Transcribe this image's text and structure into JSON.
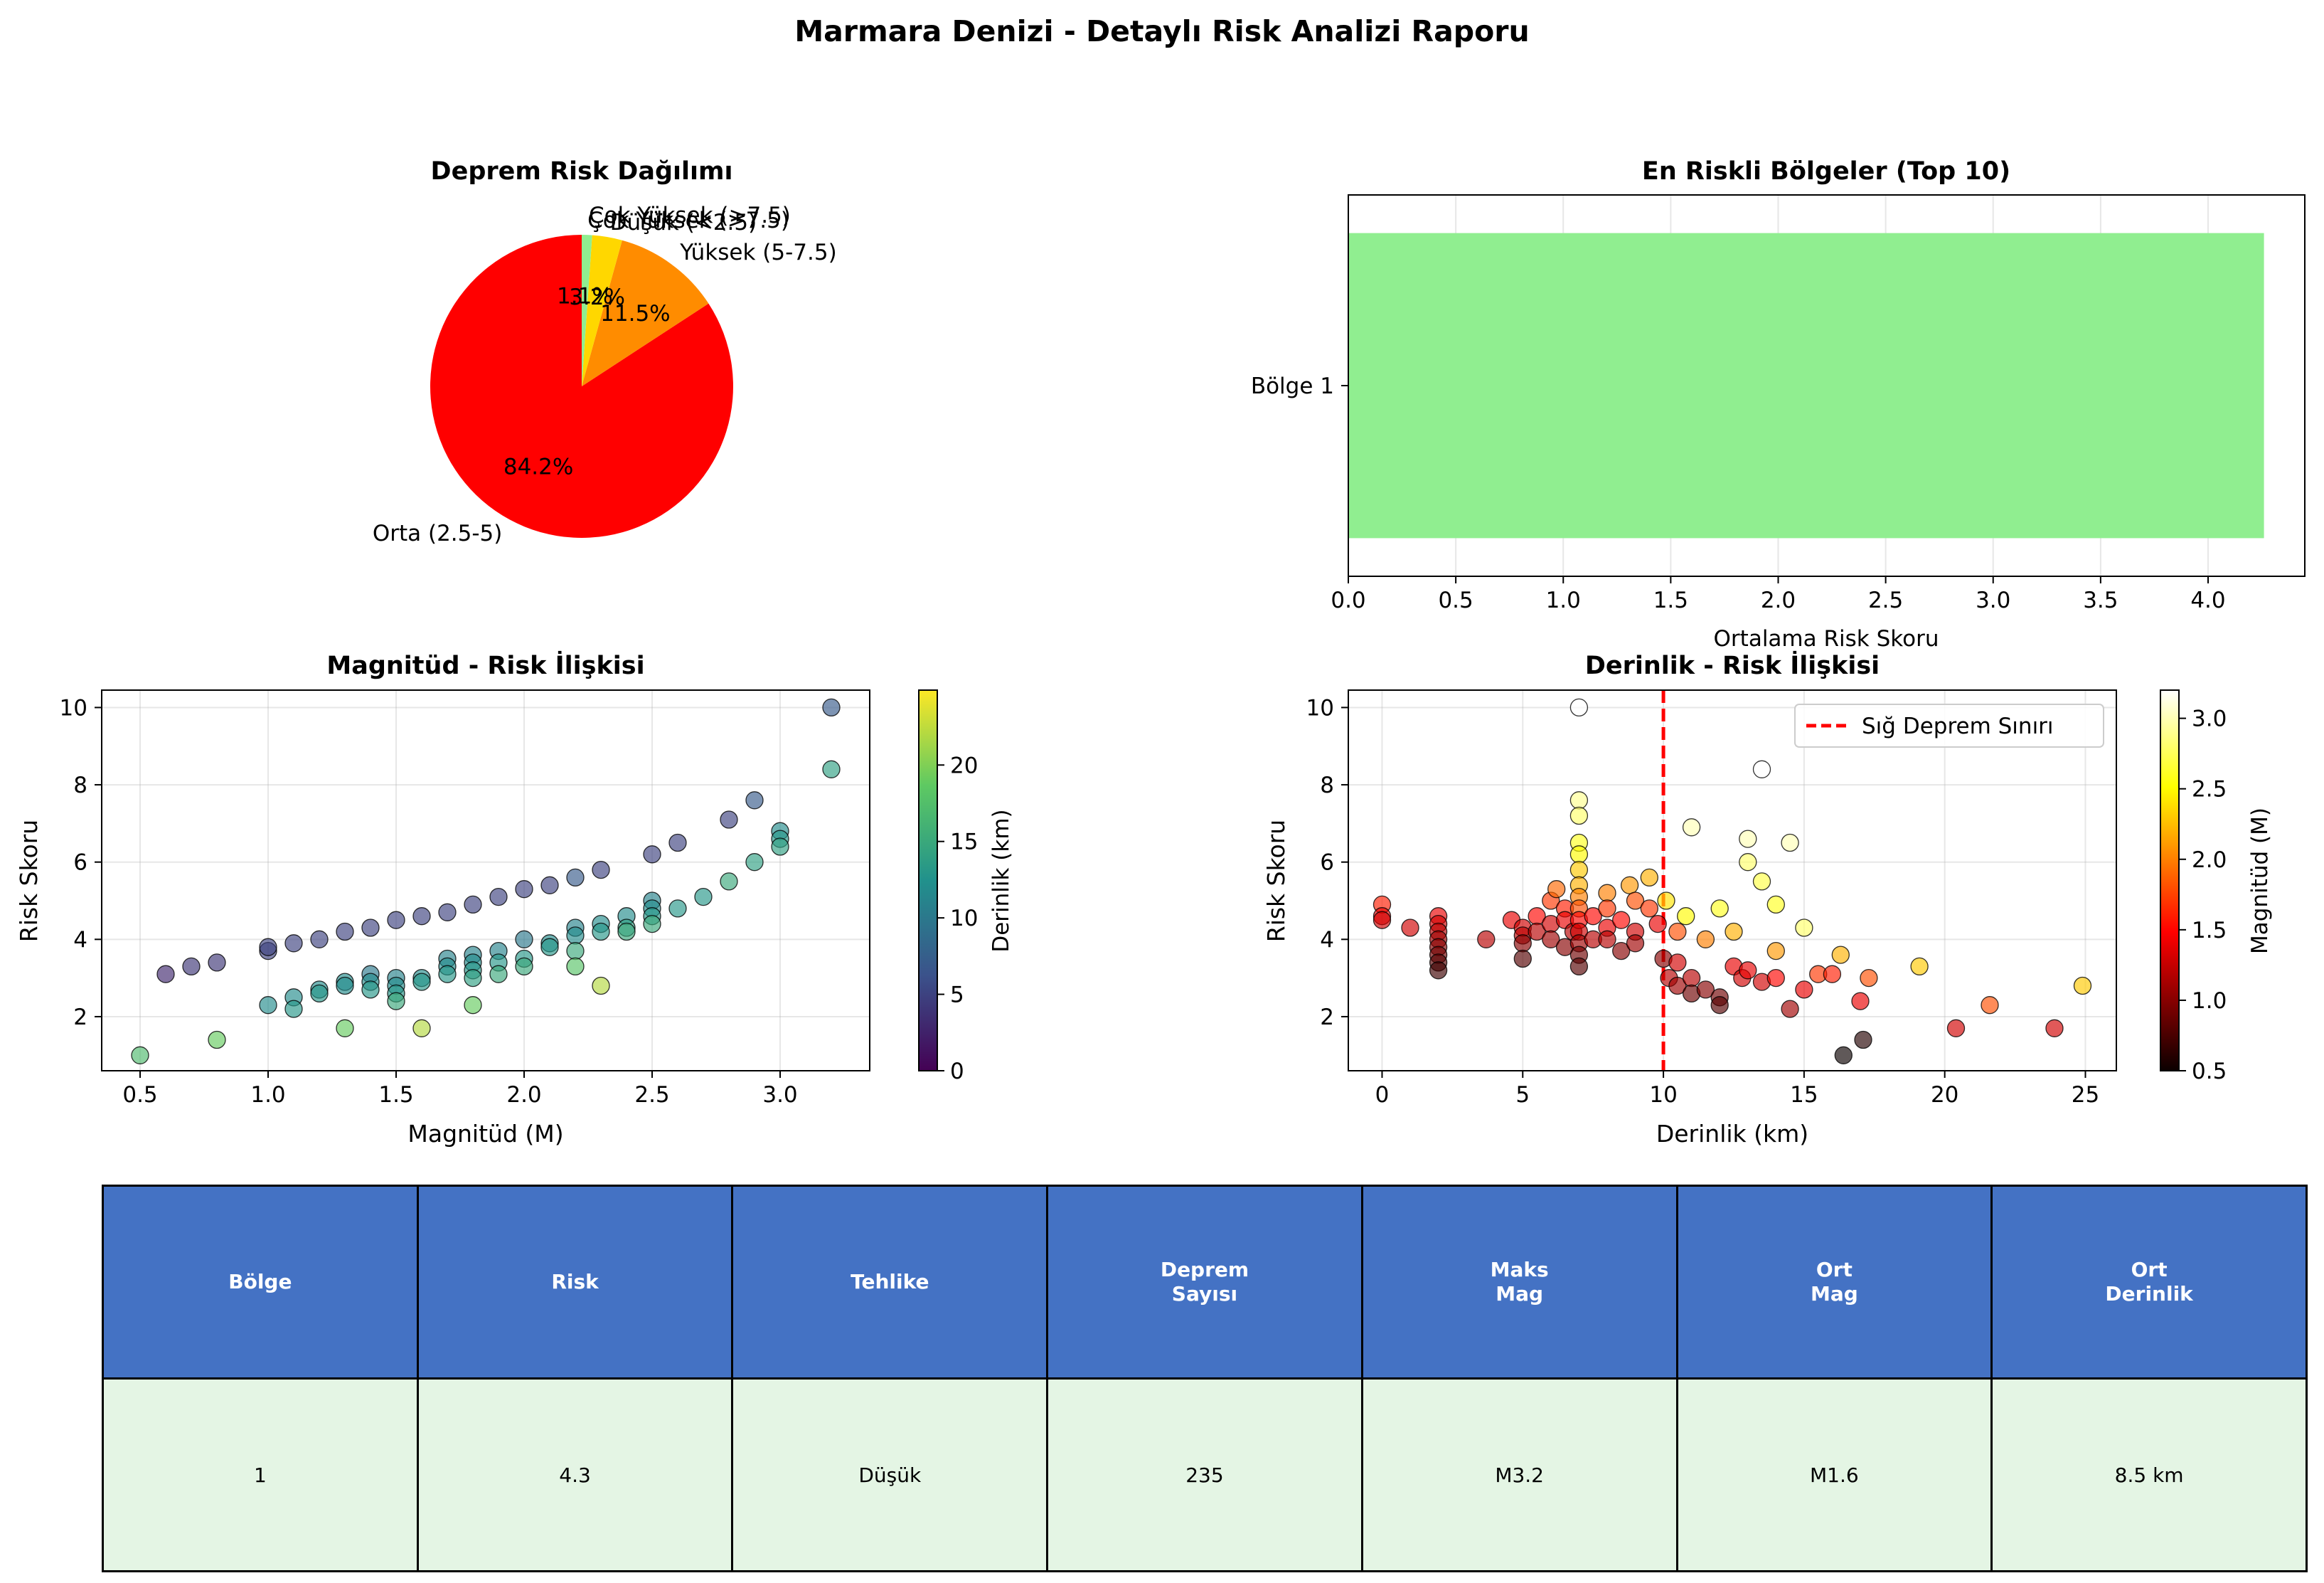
{
  "suptitle": "Marmara Denizi - Detaylı Risk Analizi Raporu",
  "chart_data": [
    {
      "type": "pie",
      "title": "Deprem Risk Dağılımı",
      "slices": [
        {
          "label": "Orta (2.5-5)",
          "value": 84.2,
          "pct_label": "84.2%",
          "color": "#ff0000"
        },
        {
          "label": "Yüksek (5-7.5)",
          "value": 11.5,
          "pct_label": "11.5%",
          "color": "#ff8c00"
        },
        {
          "label": "Düşük (<2.5)",
          "value": 3.2,
          "pct_label": "3.2%",
          "color": "#ffd700"
        },
        {
          "label": "Çok Yüksek (>7.5)",
          "value": 1.1,
          "pct_label": "1.1%",
          "color": "#90ee90"
        }
      ],
      "overlapping_text": "Çok Yüksek (>7.5)"
    },
    {
      "type": "bar",
      "orientation": "horizontal",
      "title": "En Riskli Bölgeler (Top 10)",
      "categories": [
        "Bölge 1"
      ],
      "values": [
        4.26
      ],
      "xlabel": "Ortalama Risk Skoru",
      "xlim": [
        0,
        4.45
      ],
      "xticks": [
        "0.0",
        "0.5",
        "1.0",
        "1.5",
        "2.0",
        "2.5",
        "3.0",
        "3.5",
        "4.0"
      ],
      "bar_color": "#90ee90",
      "grid": "x"
    },
    {
      "type": "scatter",
      "title": "Magnitüd - Risk İlişkisi",
      "xlabel": "Magnitüd (M)",
      "ylabel": "Risk Skoru",
      "xlim": [
        0.35,
        3.35
      ],
      "ylim": [
        0.6,
        10.45
      ],
      "xticks": [
        "0.5",
        "1.0",
        "1.5",
        "2.0",
        "2.5",
        "3.0"
      ],
      "yticks": [
        "2",
        "4",
        "6",
        "8",
        "10"
      ],
      "colorbar": {
        "label": "Derinlik (km)",
        "colormap": "viridis",
        "range": [
          0,
          24.9
        ],
        "ticks": [
          "0",
          "5",
          "10",
          "15",
          "20"
        ]
      },
      "points": [
        {
          "x": 0.5,
          "y": 1.0,
          "c": 17
        },
        {
          "x": 0.6,
          "y": 3.1,
          "c": 3
        },
        {
          "x": 0.7,
          "y": 3.3,
          "c": 4
        },
        {
          "x": 0.8,
          "y": 3.4,
          "c": 4
        },
        {
          "x": 0.8,
          "y": 1.4,
          "c": 19
        },
        {
          "x": 1.0,
          "y": 3.7,
          "c": 5
        },
        {
          "x": 1.0,
          "y": 3.8,
          "c": 5
        },
        {
          "x": 1.0,
          "y": 2.3,
          "c": 12
        },
        {
          "x": 1.1,
          "y": 3.9,
          "c": 5
        },
        {
          "x": 1.1,
          "y": 2.5,
          "c": 12
        },
        {
          "x": 1.1,
          "y": 2.2,
          "c": 13
        },
        {
          "x": 1.2,
          "y": 4.0,
          "c": 5
        },
        {
          "x": 1.2,
          "y": 2.7,
          "c": 12
        },
        {
          "x": 1.2,
          "y": 2.6,
          "c": 13
        },
        {
          "x": 1.3,
          "y": 4.2,
          "c": 5
        },
        {
          "x": 1.3,
          "y": 2.9,
          "c": 12
        },
        {
          "x": 1.3,
          "y": 2.8,
          "c": 12
        },
        {
          "x": 1.3,
          "y": 1.7,
          "c": 19
        },
        {
          "x": 1.4,
          "y": 4.3,
          "c": 5
        },
        {
          "x": 1.4,
          "y": 3.1,
          "c": 10
        },
        {
          "x": 1.4,
          "y": 2.9,
          "c": 12
        },
        {
          "x": 1.4,
          "y": 2.7,
          "c": 13
        },
        {
          "x": 1.5,
          "y": 4.5,
          "c": 5
        },
        {
          "x": 1.5,
          "y": 3.0,
          "c": 11
        },
        {
          "x": 1.5,
          "y": 2.8,
          "c": 12
        },
        {
          "x": 1.5,
          "y": 2.6,
          "c": 13
        },
        {
          "x": 1.5,
          "y": 2.4,
          "c": 15
        },
        {
          "x": 1.6,
          "y": 4.6,
          "c": 5
        },
        {
          "x": 1.6,
          "y": 3.0,
          "c": 12
        },
        {
          "x": 1.6,
          "y": 2.9,
          "c": 13
        },
        {
          "x": 1.6,
          "y": 1.7,
          "c": 22
        },
        {
          "x": 1.7,
          "y": 4.7,
          "c": 5
        },
        {
          "x": 1.7,
          "y": 3.5,
          "c": 11
        },
        {
          "x": 1.7,
          "y": 3.3,
          "c": 12
        },
        {
          "x": 1.7,
          "y": 3.1,
          "c": 13
        },
        {
          "x": 1.8,
          "y": 4.9,
          "c": 5
        },
        {
          "x": 1.8,
          "y": 3.6,
          "c": 11
        },
        {
          "x": 1.8,
          "y": 3.4,
          "c": 12
        },
        {
          "x": 1.8,
          "y": 3.2,
          "c": 13
        },
        {
          "x": 1.8,
          "y": 3.0,
          "c": 14
        },
        {
          "x": 1.8,
          "y": 2.3,
          "c": 19
        },
        {
          "x": 1.9,
          "y": 5.1,
          "c": 5
        },
        {
          "x": 1.9,
          "y": 3.7,
          "c": 11
        },
        {
          "x": 1.9,
          "y": 3.4,
          "c": 13
        },
        {
          "x": 1.9,
          "y": 3.1,
          "c": 15
        },
        {
          "x": 2.0,
          "y": 5.3,
          "c": 5
        },
        {
          "x": 2.0,
          "y": 4.0,
          "c": 10
        },
        {
          "x": 2.0,
          "y": 3.5,
          "c": 13
        },
        {
          "x": 2.0,
          "y": 3.3,
          "c": 15
        },
        {
          "x": 2.1,
          "y": 5.4,
          "c": 5
        },
        {
          "x": 2.1,
          "y": 3.9,
          "c": 12
        },
        {
          "x": 2.1,
          "y": 3.8,
          "c": 13
        },
        {
          "x": 2.2,
          "y": 5.6,
          "c": 7
        },
        {
          "x": 2.2,
          "y": 4.3,
          "c": 11
        },
        {
          "x": 2.2,
          "y": 4.1,
          "c": 12
        },
        {
          "x": 2.2,
          "y": 3.7,
          "c": 15
        },
        {
          "x": 2.2,
          "y": 3.3,
          "c": 18
        },
        {
          "x": 2.3,
          "y": 5.8,
          "c": 5
        },
        {
          "x": 2.3,
          "y": 4.4,
          "c": 12
        },
        {
          "x": 2.3,
          "y": 4.2,
          "c": 13
        },
        {
          "x": 2.3,
          "y": 2.8,
          "c": 22
        },
        {
          "x": 2.4,
          "y": 4.6,
          "c": 12
        },
        {
          "x": 2.4,
          "y": 4.3,
          "c": 14
        },
        {
          "x": 2.4,
          "y": 4.2,
          "c": 15
        },
        {
          "x": 2.5,
          "y": 6.2,
          "c": 5
        },
        {
          "x": 2.5,
          "y": 5.0,
          "c": 11
        },
        {
          "x": 2.5,
          "y": 4.8,
          "c": 12
        },
        {
          "x": 2.5,
          "y": 4.6,
          "c": 13
        },
        {
          "x": 2.5,
          "y": 4.4,
          "c": 15
        },
        {
          "x": 2.6,
          "y": 6.5,
          "c": 5
        },
        {
          "x": 2.6,
          "y": 4.8,
          "c": 13
        },
        {
          "x": 2.7,
          "y": 5.1,
          "c": 13
        },
        {
          "x": 2.8,
          "y": 7.1,
          "c": 5
        },
        {
          "x": 2.8,
          "y": 5.5,
          "c": 15
        },
        {
          "x": 2.9,
          "y": 7.6,
          "c": 7
        },
        {
          "x": 2.9,
          "y": 6.0,
          "c": 14
        },
        {
          "x": 3.0,
          "y": 6.8,
          "c": 12
        },
        {
          "x": 3.0,
          "y": 6.6,
          "c": 13
        },
        {
          "x": 3.0,
          "y": 6.4,
          "c": 14
        },
        {
          "x": 3.2,
          "y": 10.0,
          "c": 7
        },
        {
          "x": 3.2,
          "y": 8.4,
          "c": 14
        }
      ]
    },
    {
      "type": "scatter",
      "title": "Derinlik - Risk İlişkisi",
      "xlabel": "Derinlik (km)",
      "ylabel": "Risk Skoru",
      "xlim": [
        -1.2,
        26.1
      ],
      "ylim": [
        0.6,
        10.45
      ],
      "xticks": [
        "0",
        "5",
        "10",
        "15",
        "20",
        "25"
      ],
      "yticks": [
        "2",
        "4",
        "6",
        "8",
        "10"
      ],
      "reference_line": {
        "x": 10,
        "label": "Sığ Deprem Sınırı",
        "color": "#ff0000",
        "style": "dashed"
      },
      "legend": "top-right",
      "colorbar": {
        "label": "Magnitüd (M)",
        "colormap": "hot",
        "range": [
          0.5,
          3.2
        ],
        "ticks": [
          "0.5",
          "1.0",
          "1.5",
          "2.0",
          "2.5",
          "3.0"
        ]
      },
      "points": [
        {
          "x": 0,
          "y": 4.9,
          "c": 1.6
        },
        {
          "x": 0,
          "y": 4.6,
          "c": 1.4
        },
        {
          "x": 0,
          "y": 4.5,
          "c": 1.3
        },
        {
          "x": 1,
          "y": 4.3,
          "c": 1.3
        },
        {
          "x": 2,
          "y": 4.6,
          "c": 1.4
        },
        {
          "x": 2,
          "y": 4.4,
          "c": 1.3
        },
        {
          "x": 2,
          "y": 4.2,
          "c": 1.2
        },
        {
          "x": 2,
          "y": 4.0,
          "c": 1.1
        },
        {
          "x": 2,
          "y": 3.8,
          "c": 1.0
        },
        {
          "x": 2,
          "y": 3.6,
          "c": 0.9
        },
        {
          "x": 2,
          "y": 3.4,
          "c": 0.8
        },
        {
          "x": 2,
          "y": 3.2,
          "c": 0.7
        },
        {
          "x": 3.7,
          "y": 4.0,
          "c": 1.2
        },
        {
          "x": 4.6,
          "y": 4.5,
          "c": 1.4
        },
        {
          "x": 5,
          "y": 4.3,
          "c": 1.3
        },
        {
          "x": 5,
          "y": 4.1,
          "c": 1.2
        },
        {
          "x": 5,
          "y": 3.9,
          "c": 1.0
        },
        {
          "x": 5,
          "y": 3.5,
          "c": 0.8
        },
        {
          "x": 5.5,
          "y": 4.6,
          "c": 1.5
        },
        {
          "x": 5.5,
          "y": 4.2,
          "c": 1.2
        },
        {
          "x": 6,
          "y": 5.0,
          "c": 1.7
        },
        {
          "x": 6,
          "y": 4.4,
          "c": 1.3
        },
        {
          "x": 6,
          "y": 4.0,
          "c": 1.1
        },
        {
          "x": 6.2,
          "y": 5.3,
          "c": 1.9
        },
        {
          "x": 6.5,
          "y": 4.8,
          "c": 1.6
        },
        {
          "x": 6.5,
          "y": 4.5,
          "c": 1.4
        },
        {
          "x": 6.5,
          "y": 3.8,
          "c": 1.0
        },
        {
          "x": 6.8,
          "y": 4.2,
          "c": 1.2
        },
        {
          "x": 7,
          "y": 10.0,
          "c": 3.2
        },
        {
          "x": 7,
          "y": 7.6,
          "c": 2.9
        },
        {
          "x": 7,
          "y": 7.2,
          "c": 2.8
        },
        {
          "x": 7,
          "y": 6.5,
          "c": 2.6
        },
        {
          "x": 7,
          "y": 6.2,
          "c": 2.5
        },
        {
          "x": 7,
          "y": 5.8,
          "c": 2.3
        },
        {
          "x": 7,
          "y": 5.4,
          "c": 2.2
        },
        {
          "x": 7,
          "y": 5.1,
          "c": 2.0
        },
        {
          "x": 7,
          "y": 4.8,
          "c": 1.8
        },
        {
          "x": 7,
          "y": 4.5,
          "c": 1.5
        },
        {
          "x": 7,
          "y": 4.2,
          "c": 1.3
        },
        {
          "x": 7,
          "y": 3.9,
          "c": 1.1
        },
        {
          "x": 7,
          "y": 3.6,
          "c": 0.9
        },
        {
          "x": 7,
          "y": 3.3,
          "c": 0.8
        },
        {
          "x": 7.5,
          "y": 4.6,
          "c": 1.5
        },
        {
          "x": 7.5,
          "y": 4.0,
          "c": 1.2
        },
        {
          "x": 8,
          "y": 5.2,
          "c": 2.0
        },
        {
          "x": 8,
          "y": 4.8,
          "c": 1.7
        },
        {
          "x": 8,
          "y": 4.3,
          "c": 1.4
        },
        {
          "x": 8,
          "y": 4.0,
          "c": 1.2
        },
        {
          "x": 8.5,
          "y": 4.5,
          "c": 1.5
        },
        {
          "x": 8.5,
          "y": 3.7,
          "c": 1.0
        },
        {
          "x": 8.8,
          "y": 5.4,
          "c": 2.1
        },
        {
          "x": 9,
          "y": 5.0,
          "c": 1.8
        },
        {
          "x": 9,
          "y": 4.2,
          "c": 1.3
        },
        {
          "x": 9,
          "y": 3.9,
          "c": 1.1
        },
        {
          "x": 9.5,
          "y": 5.6,
          "c": 2.2
        },
        {
          "x": 9.5,
          "y": 4.8,
          "c": 1.7
        },
        {
          "x": 9.8,
          "y": 4.4,
          "c": 1.4
        },
        {
          "x": 10,
          "y": 3.5,
          "c": 1.0
        },
        {
          "x": 10.1,
          "y": 5.0,
          "c": 2.4
        },
        {
          "x": 10.2,
          "y": 3.0,
          "c": 1.2
        },
        {
          "x": 10.5,
          "y": 4.2,
          "c": 1.8
        },
        {
          "x": 10.5,
          "y": 3.4,
          "c": 1.3
        },
        {
          "x": 10.5,
          "y": 2.8,
          "c": 1.1
        },
        {
          "x": 10.8,
          "y": 4.6,
          "c": 2.5
        },
        {
          "x": 11,
          "y": 6.9,
          "c": 3.0
        },
        {
          "x": 11,
          "y": 3.0,
          "c": 1.2
        },
        {
          "x": 11,
          "y": 2.6,
          "c": 0.9
        },
        {
          "x": 11.5,
          "y": 4.0,
          "c": 2.0
        },
        {
          "x": 11.5,
          "y": 2.7,
          "c": 1.0
        },
        {
          "x": 12,
          "y": 4.8,
          "c": 2.6
        },
        {
          "x": 12,
          "y": 2.5,
          "c": 0.9
        },
        {
          "x": 12,
          "y": 2.3,
          "c": 0.8
        },
        {
          "x": 12.5,
          "y": 4.2,
          "c": 2.2
        },
        {
          "x": 12.5,
          "y": 3.3,
          "c": 1.4
        },
        {
          "x": 12.8,
          "y": 3.0,
          "c": 1.3
        },
        {
          "x": 13,
          "y": 6.6,
          "c": 3.0
        },
        {
          "x": 13,
          "y": 6.0,
          "c": 2.8
        },
        {
          "x": 13,
          "y": 3.2,
          "c": 1.4
        },
        {
          "x": 13.5,
          "y": 8.4,
          "c": 3.2
        },
        {
          "x": 13.5,
          "y": 5.5,
          "c": 2.7
        },
        {
          "x": 13.5,
          "y": 2.9,
          "c": 1.3
        },
        {
          "x": 14,
          "y": 4.9,
          "c": 2.6
        },
        {
          "x": 14,
          "y": 3.7,
          "c": 2.1
        },
        {
          "x": 14,
          "y": 3.0,
          "c": 1.5
        },
        {
          "x": 14.5,
          "y": 6.5,
          "c": 3.0
        },
        {
          "x": 14.5,
          "y": 2.2,
          "c": 1.1
        },
        {
          "x": 15,
          "y": 4.3,
          "c": 2.8
        },
        {
          "x": 15,
          "y": 2.7,
          "c": 1.4
        },
        {
          "x": 15.5,
          "y": 3.1,
          "c": 1.7
        },
        {
          "x": 16,
          "y": 3.1,
          "c": 1.6
        },
        {
          "x": 16.3,
          "y": 3.6,
          "c": 2.2
        },
        {
          "x": 16.4,
          "y": 1.0,
          "c": 0.5
        },
        {
          "x": 17,
          "y": 2.4,
          "c": 1.4
        },
        {
          "x": 17.1,
          "y": 1.4,
          "c": 0.6
        },
        {
          "x": 17.3,
          "y": 3.0,
          "c": 1.8
        },
        {
          "x": 19.1,
          "y": 3.3,
          "c": 2.3
        },
        {
          "x": 20.4,
          "y": 1.7,
          "c": 1.3
        },
        {
          "x": 21.6,
          "y": 2.3,
          "c": 1.8
        },
        {
          "x": 23.9,
          "y": 1.7,
          "c": 1.3
        },
        {
          "x": 24.9,
          "y": 2.8,
          "c": 2.3
        }
      ]
    }
  ],
  "table": {
    "headers": [
      "Bölge",
      "Risk",
      "Tehlike",
      "Deprem\nSayısı",
      "Maks\nMag",
      "Ort\nMag",
      "Ort\nDerinlik"
    ],
    "rows": [
      [
        "1",
        "4.3",
        "Düşük",
        "235",
        "M3.2",
        "M1.6",
        "8.5 km"
      ]
    ]
  }
}
